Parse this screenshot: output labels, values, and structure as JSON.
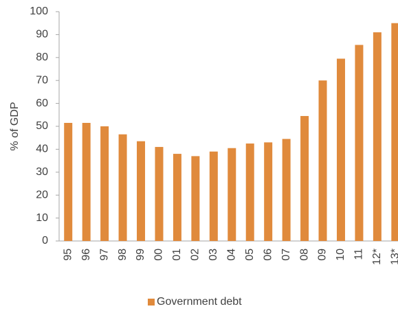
{
  "chart_data": {
    "type": "bar",
    "y_label": "% of GDP",
    "categories": [
      "95",
      "96",
      "97",
      "98",
      "99",
      "00",
      "01",
      "02",
      "03",
      "04",
      "05",
      "06",
      "07",
      "08",
      "09",
      "10",
      "11",
      "12*",
      "13*"
    ],
    "series": [
      {
        "name": "Government debt",
        "color": "#e08a3c",
        "values": [
          51.5,
          51.5,
          50,
          46.5,
          43.5,
          41,
          38,
          37,
          39,
          40.5,
          42.5,
          43,
          44.5,
          54.5,
          70,
          79.5,
          85.5,
          91,
          95
        ]
      }
    ],
    "ylim": [
      0,
      100
    ],
    "yticks": [
      0,
      10,
      20,
      30,
      40,
      50,
      60,
      70,
      80,
      90,
      100
    ],
    "grid": false,
    "legend": "bottom"
  }
}
